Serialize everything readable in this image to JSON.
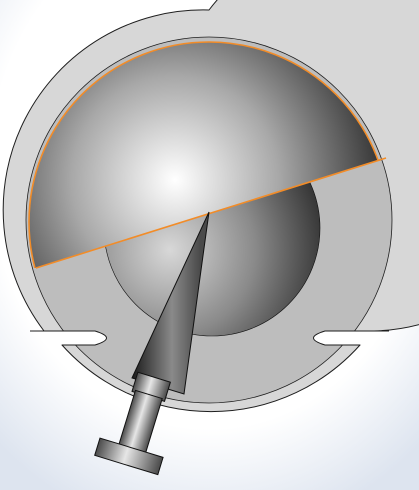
{
  "scene": {
    "type": "cad-section-view",
    "background": {
      "top": "#ffffff",
      "edge": "#dde4ef"
    },
    "shell": {
      "fill_outer": "#d7d7d7",
      "fill_inner": "#bdbdbd",
      "stroke": "#1e1e1e"
    },
    "upper_cap": {
      "highlight": "#ffffff",
      "mid": "#a8a8a8",
      "dark": "#1c1c1c",
      "edge_color": "#f28c28"
    },
    "lower_ball": {
      "highlight": "#d8d8d8",
      "mid": "#8a8a8a",
      "dark": "#242424"
    },
    "pointer": {
      "light": "#8a8a8a",
      "dark": "#151515"
    },
    "stem": {
      "light": "#e6e6e6",
      "dark": "#4a4a4a"
    }
  }
}
